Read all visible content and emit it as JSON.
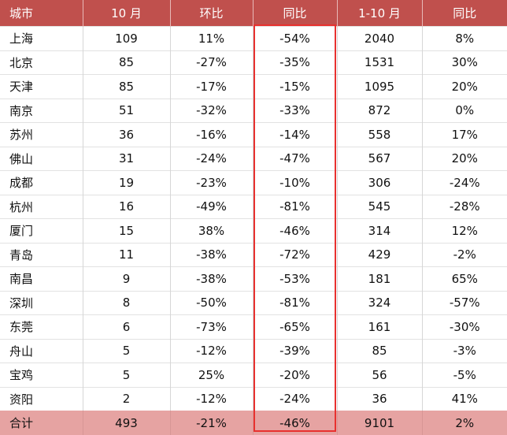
{
  "table": {
    "headers": [
      "城市",
      "10 月",
      "环比",
      "同比",
      "1-10 月",
      "同比"
    ],
    "rows": [
      {
        "city": "上海",
        "oct": "109",
        "mom": "11%",
        "yoy": "-54%",
        "ytd": "2040",
        "ytd_yoy": "8%"
      },
      {
        "city": "北京",
        "oct": "85",
        "mom": "-27%",
        "yoy": "-35%",
        "ytd": "1531",
        "ytd_yoy": "30%"
      },
      {
        "city": "天津",
        "oct": "85",
        "mom": "-17%",
        "yoy": "-15%",
        "ytd": "1095",
        "ytd_yoy": "20%"
      },
      {
        "city": "南京",
        "oct": "51",
        "mom": "-32%",
        "yoy": "-33%",
        "ytd": "872",
        "ytd_yoy": "0%"
      },
      {
        "city": "苏州",
        "oct": "36",
        "mom": "-16%",
        "yoy": "-14%",
        "ytd": "558",
        "ytd_yoy": "17%"
      },
      {
        "city": "佛山",
        "oct": "31",
        "mom": "-24%",
        "yoy": "-47%",
        "ytd": "567",
        "ytd_yoy": "20%"
      },
      {
        "city": "成都",
        "oct": "19",
        "mom": "-23%",
        "yoy": "-10%",
        "ytd": "306",
        "ytd_yoy": "-24%"
      },
      {
        "city": "杭州",
        "oct": "16",
        "mom": "-49%",
        "yoy": "-81%",
        "ytd": "545",
        "ytd_yoy": "-28%"
      },
      {
        "city": "厦门",
        "oct": "15",
        "mom": "38%",
        "yoy": "-46%",
        "ytd": "314",
        "ytd_yoy": "12%"
      },
      {
        "city": "青岛",
        "oct": "11",
        "mom": "-38%",
        "yoy": "-72%",
        "ytd": "429",
        "ytd_yoy": "-2%"
      },
      {
        "city": "南昌",
        "oct": "9",
        "mom": "-38%",
        "yoy": "-53%",
        "ytd": "181",
        "ytd_yoy": "65%"
      },
      {
        "city": "深圳",
        "oct": "8",
        "mom": "-50%",
        "yoy": "-81%",
        "ytd": "324",
        "ytd_yoy": "-57%"
      },
      {
        "city": "东莞",
        "oct": "6",
        "mom": "-73%",
        "yoy": "-65%",
        "ytd": "161",
        "ytd_yoy": "-30%"
      },
      {
        "city": "舟山",
        "oct": "5",
        "mom": "-12%",
        "yoy": "-39%",
        "ytd": "85",
        "ytd_yoy": "-3%"
      },
      {
        "city": "宝鸡",
        "oct": "5",
        "mom": "25%",
        "yoy": "-20%",
        "ytd": "56",
        "ytd_yoy": "-5%"
      },
      {
        "city": "资阳",
        "oct": "2",
        "mom": "-12%",
        "yoy": "-24%",
        "ytd": "36",
        "ytd_yoy": "41%"
      }
    ],
    "total": {
      "city": "合计",
      "oct": "493",
      "mom": "-21%",
      "yoy": "-46%",
      "ytd": "9101",
      "ytd_yoy": "2%"
    }
  },
  "colors": {
    "header_bg": "#c0504d",
    "total_bg": "#e6a3a2",
    "highlight_border": "#e8312f"
  }
}
